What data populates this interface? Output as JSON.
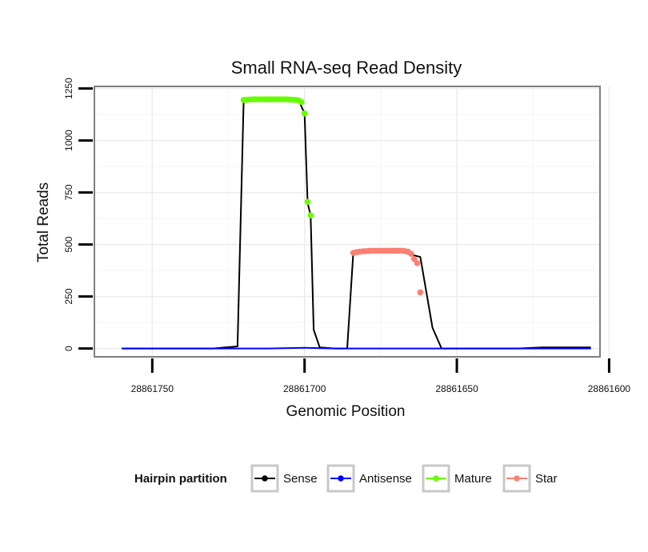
{
  "chart_data": {
    "type": "line",
    "title": "Small RNA-seq Read Density",
    "xlabel": "Genomic Position",
    "ylabel": "Total Reads",
    "x_reversed": true,
    "xlim": [
      28861769,
      28861603
    ],
    "ylim": [
      -40,
      1260
    ],
    "x_ticks": [
      28861750,
      28861700,
      28861650,
      28861600
    ],
    "x_tick_labels": [
      "28861750",
      "28861700",
      "28861650",
      "28861600"
    ],
    "y_ticks": [
      0,
      250,
      500,
      750,
      1000,
      1250
    ],
    "y_tick_labels": [
      "0",
      "250",
      "500",
      "750",
      "1000",
      "1250"
    ],
    "grid": true,
    "legend": {
      "title": "Hairpin partition",
      "position": "bottom",
      "entries": [
        {
          "label": "Sense",
          "color": "#000000"
        },
        {
          "label": "Antisense",
          "color": "#0000ff"
        },
        {
          "label": "Mature",
          "color": "#66ff00"
        },
        {
          "label": "Star",
          "color": "#fa8072"
        }
      ]
    },
    "series": [
      {
        "name": "Sense",
        "color": "#000000",
        "style": "line",
        "x": [
          28861760,
          28861730,
          28861726,
          28861722,
          28861720,
          28861702,
          28861700,
          28861699,
          28861698,
          28861697,
          28861695,
          28861690,
          28861686,
          28861684,
          28861670,
          28861662,
          28861660,
          28861658,
          28861655,
          28861652,
          28861650,
          28861630,
          28861622,
          28861606
        ],
        "y": [
          0,
          0,
          5,
          10,
          1195,
          1195,
          1130,
          700,
          640,
          90,
          5,
          0,
          0,
          460,
          470,
          440,
          270,
          100,
          0,
          0,
          0,
          0,
          5,
          5
        ]
      },
      {
        "name": "Antisense",
        "color": "#0000ff",
        "style": "line",
        "x": [
          28861760,
          28861712,
          28861700,
          28861690,
          28861606
        ],
        "y": [
          0,
          0,
          3,
          0,
          0
        ]
      },
      {
        "name": "Mature",
        "color": "#66ff00",
        "style": "points",
        "x": [
          28861720,
          28861719,
          28861718,
          28861717,
          28861716,
          28861715,
          28861714,
          28861713,
          28861712,
          28861711,
          28861710,
          28861709,
          28861708,
          28861707,
          28861706,
          28861705,
          28861704,
          28861703,
          28861702,
          28861701,
          28861700,
          28861699,
          28861698
        ],
        "y": [
          1195,
          1196,
          1197,
          1198,
          1198,
          1198,
          1198,
          1198,
          1198,
          1198,
          1198,
          1198,
          1198,
          1198,
          1198,
          1197,
          1196,
          1195,
          1193,
          1185,
          1130,
          705,
          640
        ]
      },
      {
        "name": "Star",
        "color": "#fa8072",
        "style": "points",
        "x": [
          28861684,
          28861683,
          28861682,
          28861681,
          28861680,
          28861679,
          28861678,
          28861677,
          28861676,
          28861675,
          28861674,
          28861673,
          28861672,
          28861671,
          28861670,
          28861669,
          28861668,
          28861667,
          28861666,
          28861665,
          28861664,
          28861663,
          28861662
        ],
        "y": [
          460,
          463,
          465,
          467,
          468,
          469,
          470,
          470,
          470,
          470,
          470,
          470,
          470,
          470,
          470,
          470,
          470,
          468,
          465,
          455,
          430,
          410,
          270
        ]
      }
    ]
  }
}
